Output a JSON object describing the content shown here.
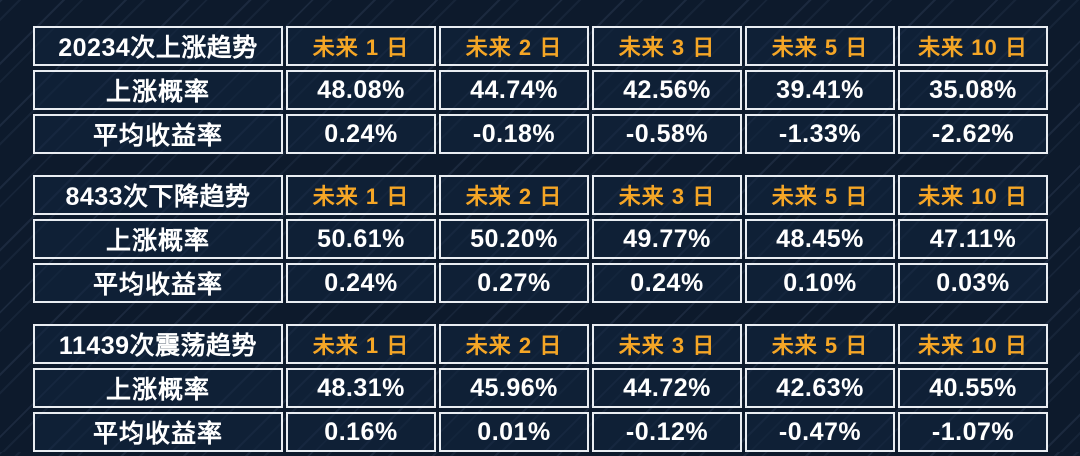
{
  "colors": {
    "background_navy": "#0d1a2c",
    "stripe_overlay": "#94b0d6",
    "cell_border": "#e9edf2",
    "cell_background": "#132640",
    "header_orange": "#F5A626",
    "value_white": "#ffffff"
  },
  "chart_data": [
    {
      "type": "table",
      "title": "20234次上涨趋势",
      "columns": [
        "未来 1 日",
        "未来 2 日",
        "未来 3 日",
        "未来 5 日",
        "未来 10 日"
      ],
      "rows": [
        {
          "label": "上涨概率",
          "values": [
            "48.08%",
            "44.74%",
            "42.56%",
            "39.41%",
            "35.08%"
          ]
        },
        {
          "label": "平均收益率",
          "values": [
            "0.24%",
            "-0.18%",
            "-0.58%",
            "-1.33%",
            "-2.62%"
          ]
        }
      ]
    },
    {
      "type": "table",
      "title": "8433次下降趋势",
      "columns": [
        "未来 1 日",
        "未来 2 日",
        "未来 3 日",
        "未来 5 日",
        "未来 10 日"
      ],
      "rows": [
        {
          "label": "上涨概率",
          "values": [
            "50.61%",
            "50.20%",
            "49.77%",
            "48.45%",
            "47.11%"
          ]
        },
        {
          "label": "平均收益率",
          "values": [
            "0.24%",
            "0.27%",
            "0.24%",
            "0.10%",
            "0.03%"
          ]
        }
      ]
    },
    {
      "type": "table",
      "title": "11439次震荡趋势",
      "columns": [
        "未来 1 日",
        "未来 2 日",
        "未来 3 日",
        "未来 5 日",
        "未来 10 日"
      ],
      "rows": [
        {
          "label": "上涨概率",
          "values": [
            "48.31%",
            "45.96%",
            "44.72%",
            "42.63%",
            "40.55%"
          ]
        },
        {
          "label": "平均收益率",
          "values": [
            "0.16%",
            "0.01%",
            "-0.12%",
            "-0.47%",
            "-1.07%"
          ]
        }
      ]
    }
  ]
}
